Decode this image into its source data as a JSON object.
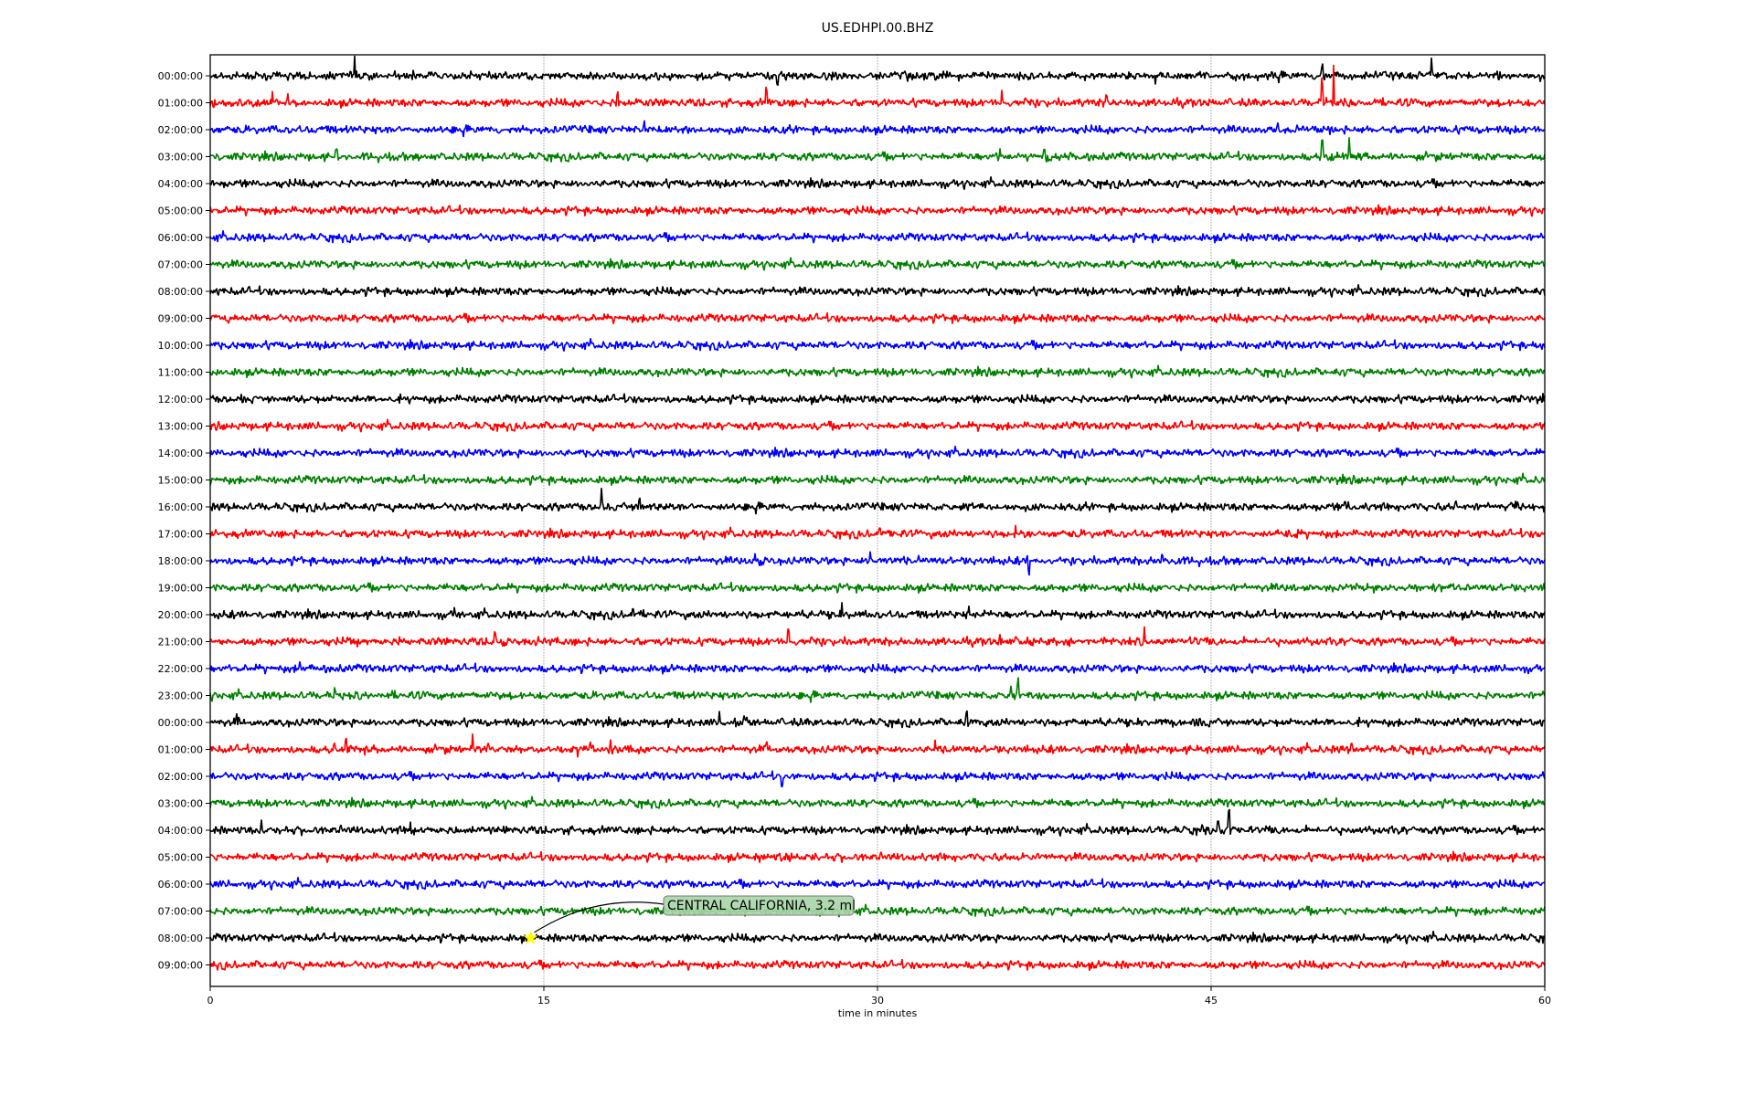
{
  "chart_data": {
    "type": "line",
    "title": "US.EDHPI.00.BHZ",
    "xlabel": "time in minutes",
    "ylabel": "",
    "xlim": [
      0,
      60
    ],
    "xticks": [
      "0",
      "15",
      "30",
      "45",
      "60"
    ],
    "xtick_values": [
      0,
      15,
      30,
      45,
      60
    ],
    "grid": "vertical dotted at x ticks",
    "trace_colors": [
      "#000000",
      "#ff0000",
      "#0000ff",
      "#008000"
    ],
    "rows": [
      {
        "label": "00:00:00",
        "events": [
          [
            6.5,
            20
          ],
          [
            25.5,
            -10
          ],
          [
            50.0,
            12
          ],
          [
            54.9,
            18
          ]
        ]
      },
      {
        "label": "01:00:00",
        "events": [
          [
            2.8,
            10
          ],
          [
            3.5,
            10
          ],
          [
            18.3,
            12
          ],
          [
            25.0,
            12
          ],
          [
            30.5,
            6
          ],
          [
            35.6,
            10
          ],
          [
            40.3,
            10
          ],
          [
            50.0,
            25
          ],
          [
            50.5,
            40
          ]
        ]
      },
      {
        "label": "02:00:00",
        "events": [
          [
            19.5,
            8
          ],
          [
            48.0,
            6
          ]
        ]
      },
      {
        "label": "03:00:00",
        "events": [
          [
            5.7,
            8
          ],
          [
            35.5,
            12
          ],
          [
            37.5,
            8
          ],
          [
            50.0,
            20
          ],
          [
            51.2,
            18
          ]
        ]
      },
      {
        "label": "04:00:00",
        "events": []
      },
      {
        "label": "05:00:00",
        "events": []
      },
      {
        "label": "06:00:00",
        "events": []
      },
      {
        "label": "07:00:00",
        "events": []
      },
      {
        "label": "08:00:00",
        "events": []
      },
      {
        "label": "09:00:00",
        "events": []
      },
      {
        "label": "10:00:00",
        "events": []
      },
      {
        "label": "11:00:00",
        "events": []
      },
      {
        "label": "12:00:00",
        "events": [
          [
            1.4,
            6
          ]
        ]
      },
      {
        "label": "13:00:00",
        "events": []
      },
      {
        "label": "14:00:00",
        "events": []
      },
      {
        "label": "15:00:00",
        "events": []
      },
      {
        "label": "16:00:00",
        "events": [
          [
            17.6,
            22
          ],
          [
            19.3,
            8
          ],
          [
            51.0,
            8
          ],
          [
            56.0,
            8
          ],
          [
            58.5,
            8
          ]
        ]
      },
      {
        "label": "17:00:00",
        "events": [
          [
            30.1,
            6
          ],
          [
            36.2,
            8
          ],
          [
            48.0,
            5
          ]
        ]
      },
      {
        "label": "18:00:00",
        "events": [
          [
            24.5,
            10
          ],
          [
            29.7,
            8
          ],
          [
            36.8,
            -15
          ],
          [
            42.8,
            8
          ]
        ]
      },
      {
        "label": "19:00:00",
        "events": [
          [
            48.7,
            8
          ]
        ]
      },
      {
        "label": "20:00:00",
        "events": [
          [
            11.0,
            6
          ],
          [
            19.0,
            6
          ],
          [
            28.4,
            10
          ],
          [
            34.1,
            8
          ]
        ]
      },
      {
        "label": "21:00:00",
        "events": [
          [
            6.2,
            6
          ],
          [
            8.5,
            8
          ],
          [
            12.8,
            10
          ],
          [
            26.0,
            10
          ],
          [
            35.5,
            8
          ],
          [
            42.0,
            12
          ]
        ]
      },
      {
        "label": "22:00:00",
        "events": [
          [
            4.0,
            6
          ]
        ]
      },
      {
        "label": "23:00:00",
        "events": [
          [
            5.6,
            8
          ],
          [
            36.0,
            14
          ],
          [
            36.3,
            14
          ]
        ]
      },
      {
        "label": "00:00:00",
        "events": [
          [
            1.2,
            5
          ],
          [
            22.9,
            10
          ],
          [
            24.0,
            8
          ],
          [
            34.0,
            8
          ]
        ]
      },
      {
        "label": "01:00:00",
        "events": [
          [
            5.6,
            10
          ],
          [
            6.1,
            8
          ],
          [
            11.8,
            14
          ],
          [
            12.5,
            10
          ],
          [
            17.1,
            10
          ],
          [
            18.0,
            10
          ],
          [
            25.0,
            8
          ],
          [
            32.6,
            8
          ],
          [
            51.3,
            8
          ]
        ]
      },
      {
        "label": "02:00:00",
        "events": [
          [
            25.7,
            -10
          ]
        ]
      },
      {
        "label": "03:00:00",
        "events": []
      },
      {
        "label": "04:00:00",
        "events": [
          [
            2.3,
            8
          ],
          [
            9.0,
            6
          ],
          [
            44.6,
            8
          ],
          [
            45.3,
            12
          ],
          [
            45.8,
            22
          ]
        ]
      },
      {
        "label": "05:00:00",
        "events": [
          [
            24.7,
            -6
          ]
        ]
      },
      {
        "label": "06:00:00",
        "events": []
      },
      {
        "label": "07:00:00",
        "events": []
      },
      {
        "label": "08:00:00",
        "events": []
      },
      {
        "label": "09:00:00",
        "events": []
      }
    ],
    "annotation": {
      "text": "CENTRAL CALIFORNIA, 3.2 ml",
      "row_index": 32,
      "minute": 14.4,
      "marker": "star",
      "marker_color": "#ffff00",
      "box_color": "#a8d5a8"
    }
  }
}
